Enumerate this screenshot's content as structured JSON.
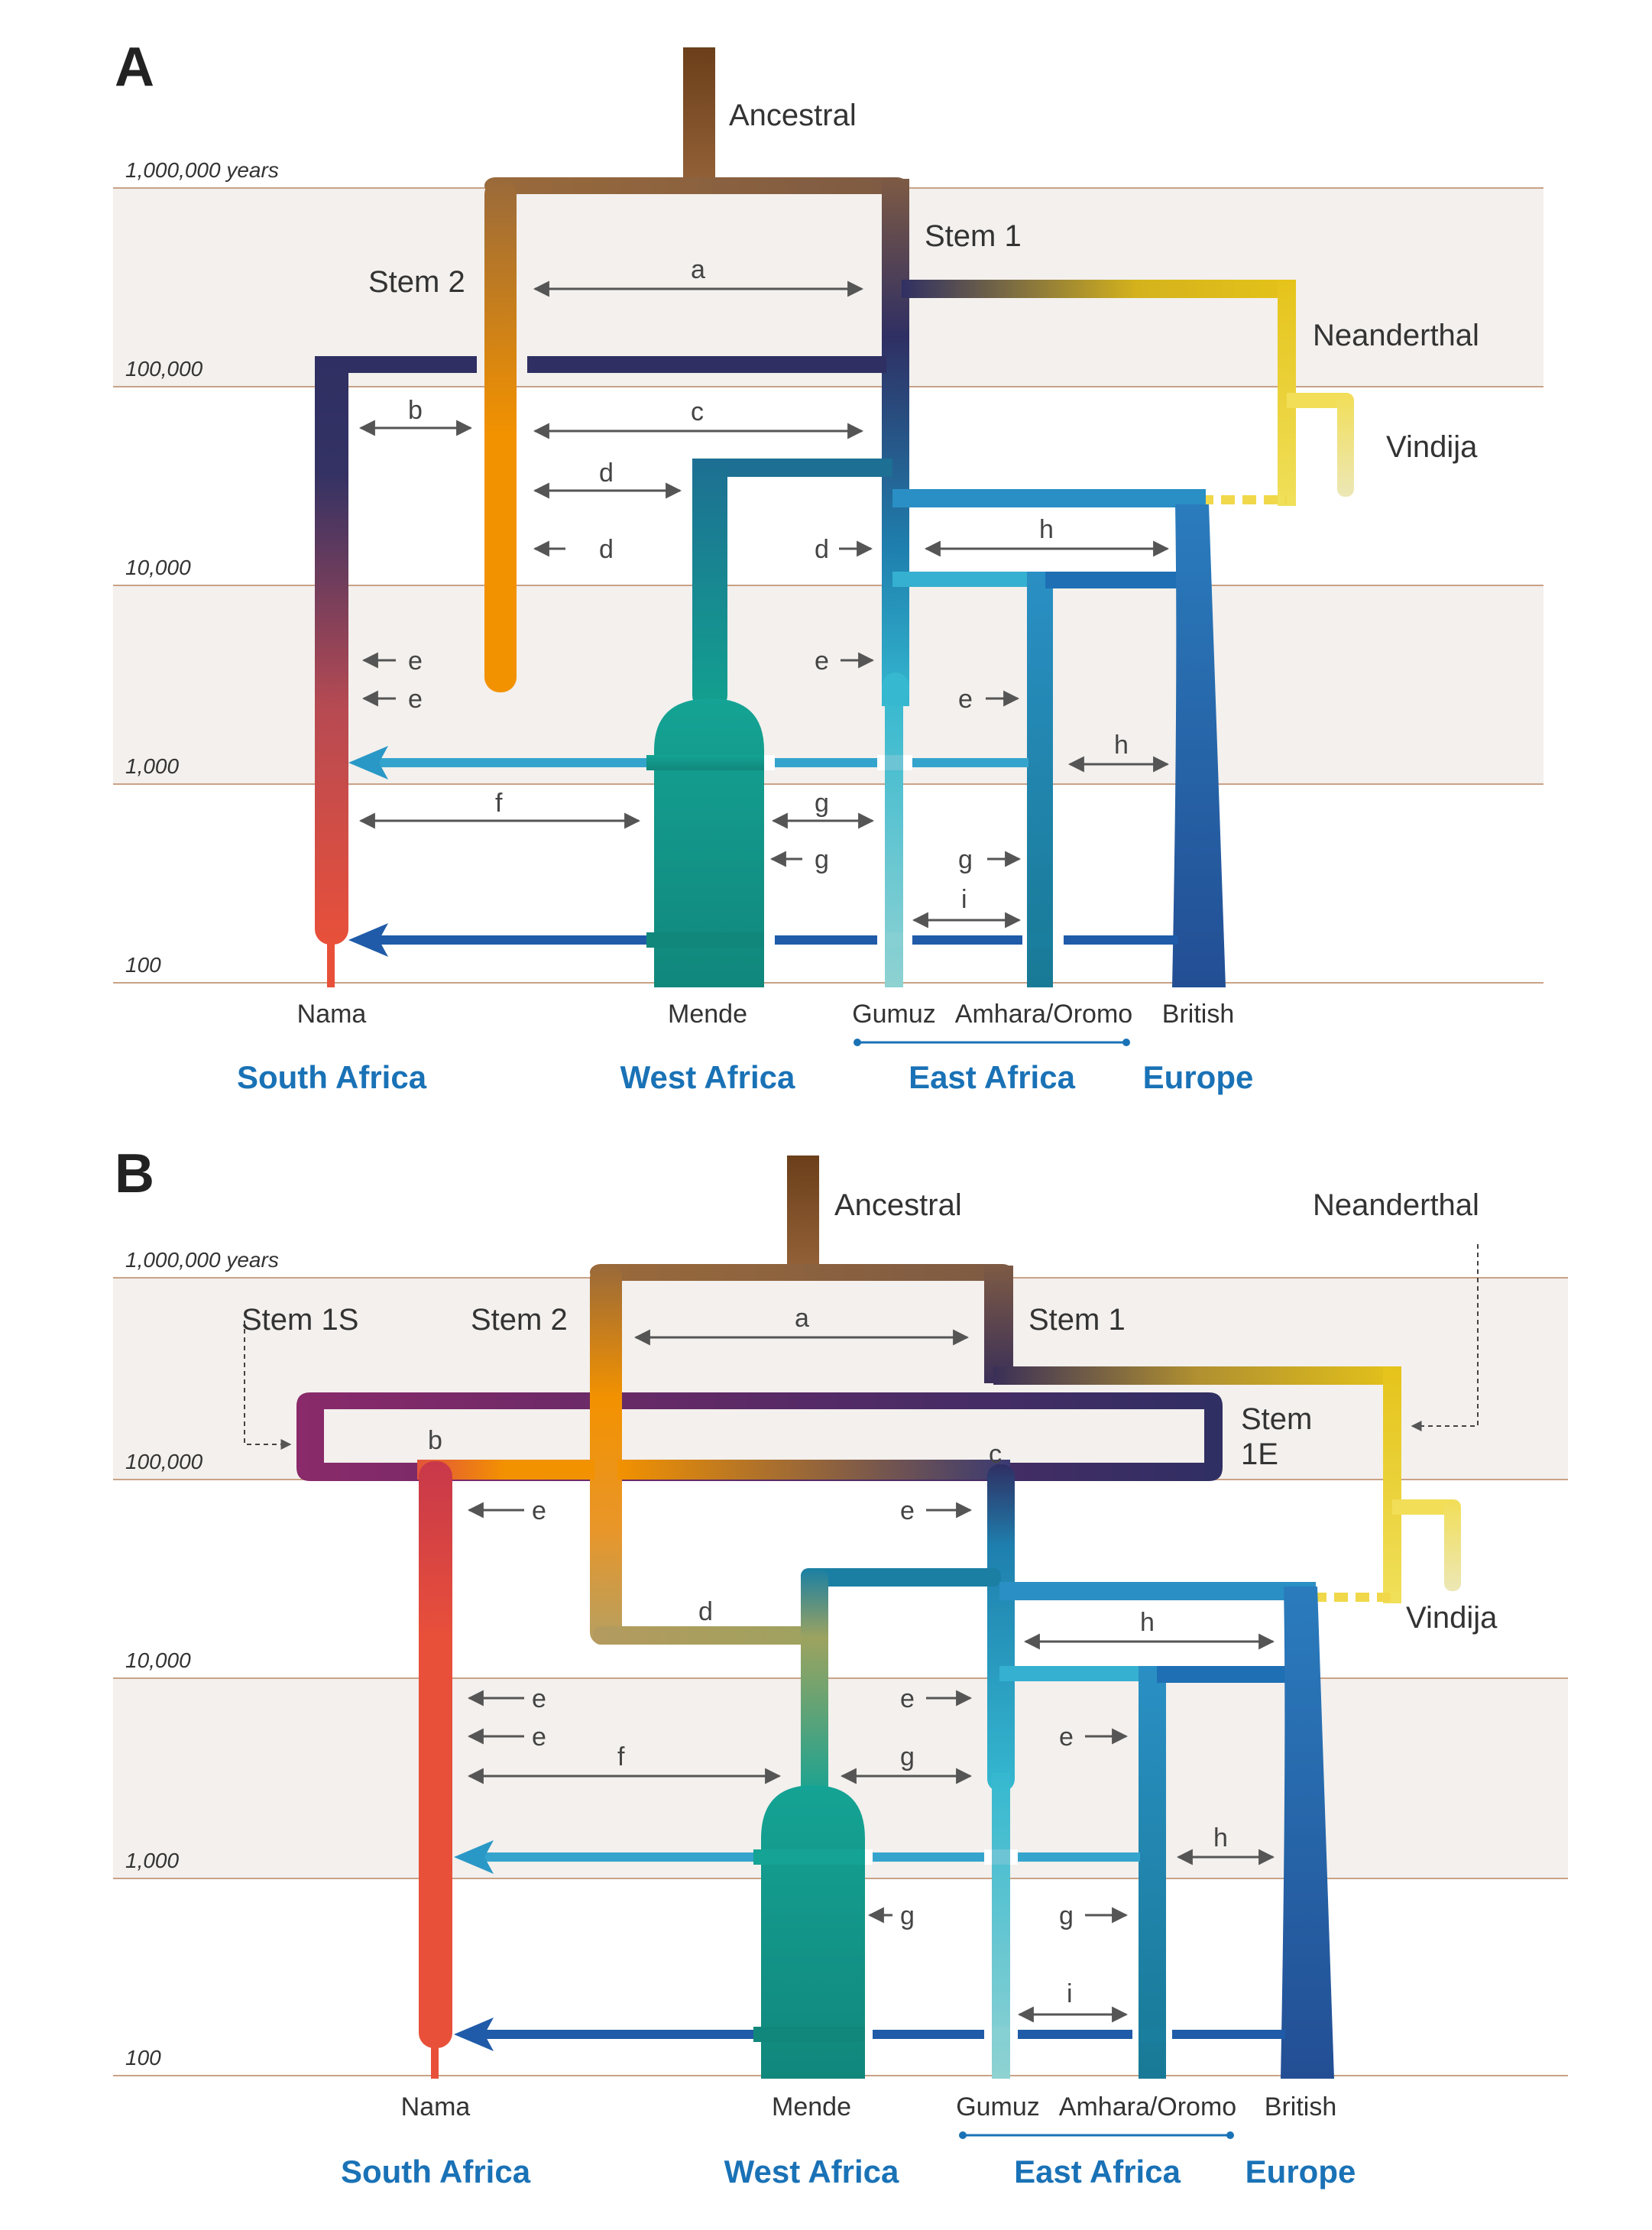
{
  "panels": [
    {
      "letter": "A",
      "time_labels": [
        "1,000,000 years",
        "100,000",
        "10,000",
        "1,000",
        "100"
      ],
      "lineages": {
        "ancestral": "Ancestral",
        "stem1": "Stem 1",
        "stem2": "Stem 2",
        "neanderthal": "Neanderthal",
        "vindija": "Vindija"
      },
      "arrow_letters": {
        "a": "a",
        "b": "b",
        "c": "c",
        "d1": "d",
        "d2": "d",
        "d3": "d",
        "e1": "e",
        "e2": "e",
        "e3": "e",
        "e4": "e",
        "f": "f",
        "g1": "g",
        "g2": "g",
        "g3": "g",
        "h1": "h",
        "h2": "h",
        "i": "i"
      },
      "populations": [
        "Nama",
        "Mende",
        "Gumuz",
        "Amhara/Oromo",
        "British"
      ],
      "regions": [
        "South Africa",
        "West Africa",
        "East Africa",
        "Europe"
      ]
    },
    {
      "letter": "B",
      "time_labels": [
        "1,000,000 years",
        "100,000",
        "10,000",
        "1,000",
        "100"
      ],
      "lineages": {
        "ancestral": "Ancestral",
        "neanderthal": "Neanderthal",
        "stem1s": "Stem 1S",
        "stem2": "Stem 2",
        "stem1": "Stem 1",
        "stem1e_1": "Stem",
        "stem1e_2": "1E",
        "vindija": "Vindija"
      },
      "arrow_letters": {
        "a": "a",
        "b": "b",
        "c": "c",
        "d": "d",
        "e1": "e",
        "e2": "e",
        "e3": "e",
        "e4": "e",
        "e5": "e",
        "e6": "e",
        "f": "f",
        "g1": "g",
        "g2": "g",
        "g3": "g",
        "h1": "h",
        "h2": "h",
        "i": "i"
      },
      "populations": [
        "Nama",
        "Mende",
        "Gumuz",
        "Amhara/Oromo",
        "British"
      ],
      "regions": [
        "South Africa",
        "West Africa",
        "East Africa",
        "Europe"
      ]
    }
  ],
  "colors": {
    "region_text": "#1a72b6",
    "band_fill": "#f3f0ed",
    "band_line": "#c9a287",
    "ancestral": "#6b3f1a",
    "stem2_orange": "#f39200",
    "stem1_navy": "#2f2f63",
    "neanderthal_yellow": "#e5c31a",
    "nama_red": "#e8503a",
    "mende_teal": "#14a394",
    "gumuz_cyan": "#35b8d0",
    "amhara_blue": "#2a8fc4",
    "british_blue": "#1e5aa8",
    "stem1s_purple": "#7b2369"
  }
}
